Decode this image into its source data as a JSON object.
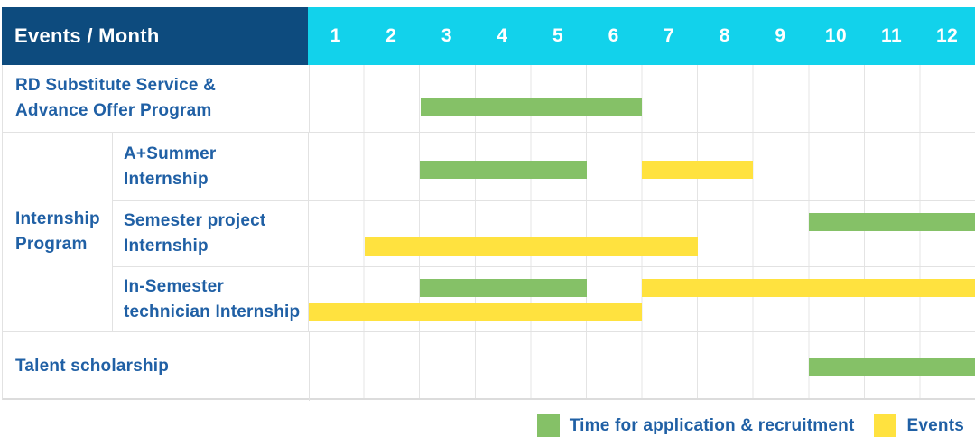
{
  "header": {
    "title": "Events / Month",
    "months": [
      "1",
      "2",
      "3",
      "4",
      "5",
      "6",
      "7",
      "8",
      "9",
      "10",
      "11",
      "12"
    ]
  },
  "group": {
    "label_line1": "Internship",
    "label_line2": "Program"
  },
  "rows": [
    {
      "label_line1": "RD Substitute Service &",
      "label_line2": "Advance Offer Program"
    },
    {
      "label_line1": "A+Summer",
      "label_line2": "Internship"
    },
    {
      "label_line1": "Semester project",
      "label_line2": "Internship"
    },
    {
      "label_line1": "In-Semester",
      "label_line2": "technician Internship"
    },
    {
      "label_line1": "Talent scholarship"
    }
  ],
  "legend": {
    "application_label": "Time for application & recruitment",
    "events_label": "Events"
  },
  "colors": {
    "navy": "#0D4B7E",
    "cyan": "#12D2EB",
    "green": "#85C167",
    "yellow": "#FFE23F",
    "label": "#2060A5"
  },
  "chart_data": {
    "type": "gantt",
    "title": "Events / Month",
    "x_unit": "month",
    "x_ticks": [
      1,
      2,
      3,
      4,
      5,
      6,
      7,
      8,
      9,
      10,
      11,
      12
    ],
    "x_range": [
      1,
      13
    ],
    "legend": {
      "application": "Time for application & recruitment",
      "event": "Events"
    },
    "rows": [
      {
        "group": null,
        "label": "RD Substitute Service & Advance Offer Program",
        "bars": [
          {
            "kind": "application",
            "start_month": 3,
            "end_month": 7,
            "lane": "c"
          }
        ]
      },
      {
        "group": "Internship Program",
        "label": "A+Summer Internship",
        "bars": [
          {
            "kind": "application",
            "start_month": 3,
            "end_month": 6,
            "lane": "c"
          },
          {
            "kind": "event",
            "start_month": 7,
            "end_month": 9,
            "lane": "c"
          }
        ]
      },
      {
        "group": "Internship Program",
        "label": "Semester project Internship",
        "bars": [
          {
            "kind": "application",
            "start_month": 10,
            "end_month": 13,
            "lane": "0"
          },
          {
            "kind": "event",
            "start_month": 2,
            "end_month": 8,
            "lane": "1"
          }
        ]
      },
      {
        "group": "Internship Program",
        "label": "In-Semester technician Internship",
        "bars": [
          {
            "kind": "application",
            "start_month": 3,
            "end_month": 6,
            "lane": "0"
          },
          {
            "kind": "event",
            "start_month": 7,
            "end_month": 13,
            "lane": "0"
          },
          {
            "kind": "event",
            "start_month": 1,
            "end_month": 7,
            "lane": "1"
          }
        ]
      },
      {
        "group": null,
        "label": "Talent scholarship",
        "bars": [
          {
            "kind": "application",
            "start_month": 10,
            "end_month": 13,
            "lane": "c"
          }
        ]
      }
    ]
  }
}
